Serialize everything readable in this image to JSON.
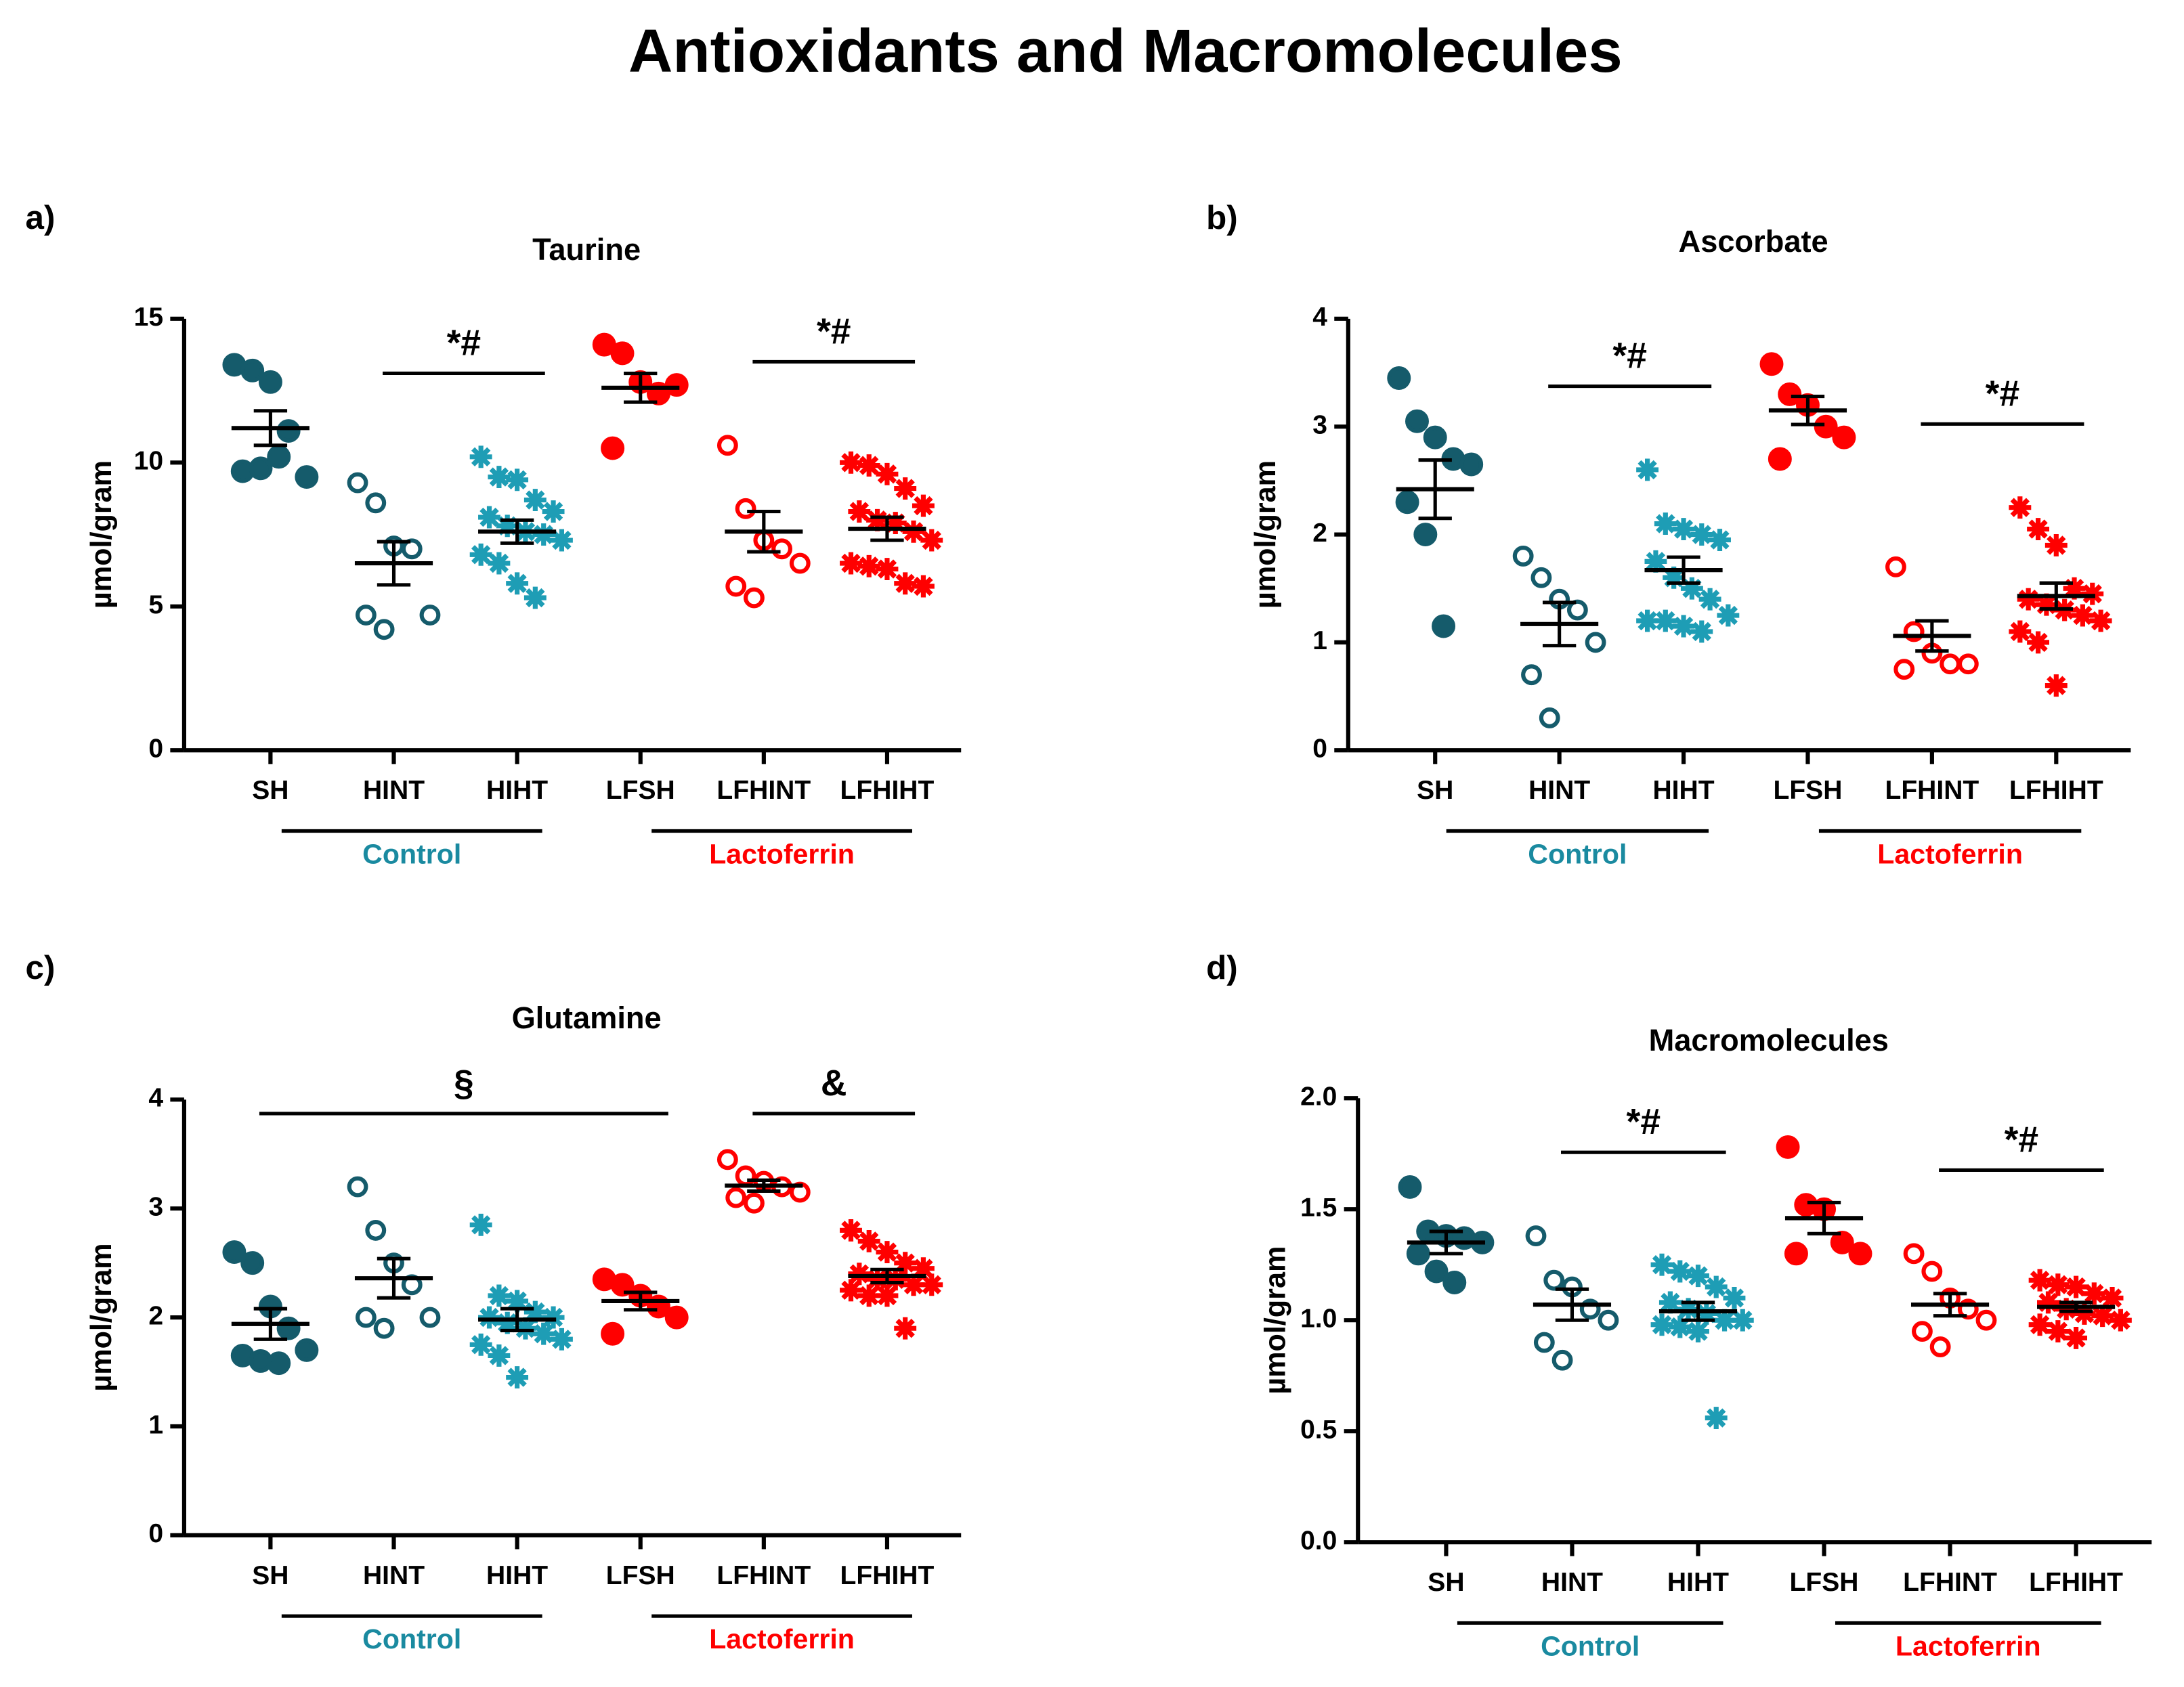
{
  "title": "Antioxidants and Macromolecules",
  "chart_data": [
    {
      "type": "dot",
      "panel": "a)",
      "title": "Taurine",
      "ylabel": "µmol/gram",
      "categories": [
        "SH",
        "HINT",
        "HIHT",
        "LFSH",
        "LFHINT",
        "LFHIHT"
      ],
      "colors": [
        "#155b6b",
        "#155b6b",
        "#1e9db5",
        "#ff0000",
        "#ff0000",
        "#ff0000"
      ],
      "markers": [
        "filled",
        "open",
        "asterisk",
        "filled",
        "open",
        "asterisk"
      ],
      "points": [
        [
          13.4,
          13.2,
          12.8,
          11.1,
          9.5,
          9.7,
          9.8,
          10.2
        ],
        [
          9.3,
          8.6,
          7.1,
          7.0,
          4.7,
          4.7,
          4.2
        ],
        [
          10.2,
          9.5,
          9.4,
          8.7,
          8.3,
          8.1,
          7.8,
          7.6,
          7.5,
          7.3,
          6.8,
          6.5,
          5.8,
          5.3
        ],
        [
          14.1,
          13.8,
          12.8,
          12.4,
          12.7,
          10.5
        ],
        [
          10.6,
          8.4,
          7.3,
          7.0,
          6.5,
          5.7,
          5.3
        ],
        [
          10.0,
          9.9,
          9.6,
          9.1,
          8.5,
          8.3,
          8.0,
          7.9,
          7.6,
          7.3,
          6.5,
          6.4,
          6.3,
          5.8,
          5.7
        ]
      ],
      "means": [
        11.2,
        6.5,
        7.6,
        12.6,
        7.6,
        7.7
      ],
      "sems": [
        0.6,
        0.75,
        0.4,
        0.5,
        0.7,
        0.4
      ],
      "ylim": [
        0,
        15
      ],
      "yticks": [
        0,
        5,
        10,
        15
      ],
      "groups": [
        {
          "label": "Control",
          "color": "#1a8aa0",
          "span": [
            0,
            2
          ]
        },
        {
          "label": "Lactoferrin",
          "color": "#ff0000",
          "span": [
            3,
            5
          ]
        }
      ],
      "significance": [
        {
          "text": "*#",
          "span": [
            1,
            2
          ]
        },
        {
          "text": "*#",
          "span": [
            4,
            5
          ]
        }
      ]
    },
    {
      "type": "dot",
      "panel": "b)",
      "title": "Ascorbate",
      "ylabel": "µmol/gram",
      "categories": [
        "SH",
        "HINT",
        "HIHT",
        "LFSH",
        "LFHINT",
        "LFHIHT"
      ],
      "colors": [
        "#155b6b",
        "#155b6b",
        "#1e9db5",
        "#ff0000",
        "#ff0000",
        "#ff0000"
      ],
      "markers": [
        "filled",
        "open",
        "asterisk",
        "filled",
        "open",
        "asterisk"
      ],
      "points": [
        [
          3.45,
          3.05,
          2.9,
          2.7,
          2.65,
          2.3,
          2.0,
          1.15
        ],
        [
          1.8,
          1.6,
          1.4,
          1.3,
          1.0,
          0.7,
          0.3
        ],
        [
          2.6,
          2.1,
          2.05,
          2.0,
          1.95,
          1.75,
          1.6,
          1.5,
          1.4,
          1.25,
          1.2,
          1.2,
          1.15,
          1.1
        ],
        [
          3.58,
          3.3,
          3.2,
          3.0,
          2.9,
          2.7
        ],
        [
          1.7,
          1.1,
          0.9,
          0.8,
          0.8,
          0.75
        ],
        [
          2.25,
          2.05,
          1.9,
          1.5,
          1.45,
          1.4,
          1.35,
          1.3,
          1.25,
          1.2,
          1.1,
          1.0,
          0.6
        ]
      ],
      "means": [
        2.42,
        1.17,
        1.67,
        3.15,
        1.06,
        1.43
      ],
      "sems": [
        0.27,
        0.2,
        0.12,
        0.13,
        0.14,
        0.12
      ],
      "ylim": [
        0,
        4
      ],
      "yticks": [
        0,
        1,
        2,
        3,
        4
      ],
      "groups": [
        {
          "label": "Control",
          "color": "#1a8aa0",
          "span": [
            0,
            2
          ]
        },
        {
          "label": "Lactoferrin",
          "color": "#ff0000",
          "span": [
            3,
            5
          ]
        }
      ],
      "significance": [
        {
          "text": "*#",
          "span": [
            1,
            2
          ]
        },
        {
          "text": "*#",
          "span": [
            4,
            5
          ]
        }
      ]
    },
    {
      "type": "dot",
      "panel": "c)",
      "title": "Glutamine",
      "ylabel": "µmol/gram",
      "categories": [
        "SH",
        "HINT",
        "HIHT",
        "LFSH",
        "LFHINT",
        "LFHIHT"
      ],
      "colors": [
        "#155b6b",
        "#155b6b",
        "#1e9db5",
        "#ff0000",
        "#ff0000",
        "#ff0000"
      ],
      "markers": [
        "filled",
        "open",
        "asterisk",
        "filled",
        "open",
        "asterisk"
      ],
      "points": [
        [
          2.6,
          2.5,
          2.1,
          1.9,
          1.7,
          1.65,
          1.6,
          1.58
        ],
        [
          3.2,
          2.8,
          2.5,
          2.3,
          2.0,
          2.0,
          1.9
        ],
        [
          2.85,
          2.2,
          2.15,
          2.05,
          2.0,
          2.0,
          1.95,
          1.9,
          1.85,
          1.8,
          1.75,
          1.65,
          1.45
        ],
        [
          2.35,
          2.3,
          2.2,
          2.1,
          2.0,
          1.85
        ],
        [
          3.45,
          3.3,
          3.25,
          3.2,
          3.15,
          3.1,
          3.05
        ],
        [
          2.8,
          2.7,
          2.6,
          2.5,
          2.45,
          2.4,
          2.35,
          2.35,
          2.3,
          2.3,
          2.25,
          2.2,
          2.2,
          1.9
        ]
      ],
      "means": [
        1.94,
        2.36,
        1.98,
        2.15,
        3.21,
        2.38
      ],
      "sems": [
        0.14,
        0.18,
        0.1,
        0.08,
        0.05,
        0.06
      ],
      "ylim": [
        0,
        4
      ],
      "yticks": [
        0,
        1,
        2,
        3,
        4
      ],
      "groups": [
        {
          "label": "Control",
          "color": "#1a8aa0",
          "span": [
            0,
            2
          ]
        },
        {
          "label": "Lactoferrin",
          "color": "#ff0000",
          "span": [
            3,
            5
          ]
        }
      ],
      "significance": [
        {
          "text": "§",
          "span": [
            0,
            3
          ]
        },
        {
          "text": "&",
          "span": [
            4,
            5
          ]
        }
      ]
    },
    {
      "type": "dot",
      "panel": "d)",
      "title": "Macromolecules",
      "ylabel": "µmol/gram",
      "categories": [
        "SH",
        "HINT",
        "HIHT",
        "LFSH",
        "LFHINT",
        "LFHIHT"
      ],
      "colors": [
        "#155b6b",
        "#155b6b",
        "#1e9db5",
        "#ff0000",
        "#ff0000",
        "#ff0000"
      ],
      "markers": [
        "filled",
        "open",
        "asterisk",
        "filled",
        "open",
        "asterisk"
      ],
      "points": [
        [
          1.6,
          1.4,
          1.38,
          1.37,
          1.35,
          1.3,
          1.22,
          1.17
        ],
        [
          1.38,
          1.18,
          1.15,
          1.05,
          1.0,
          0.9,
          0.82
        ],
        [
          1.25,
          1.22,
          1.2,
          1.15,
          1.1,
          1.08,
          1.05,
          1.03,
          1.0,
          1.0,
          0.98,
          0.97,
          0.95,
          0.56
        ],
        [
          1.78,
          1.52,
          1.5,
          1.35,
          1.3,
          1.3
        ],
        [
          1.3,
          1.22,
          1.1,
          1.05,
          1.0,
          0.95,
          0.88
        ],
        [
          1.18,
          1.16,
          1.15,
          1.12,
          1.1,
          1.08,
          1.05,
          1.03,
          1.02,
          1.0,
          0.98,
          0.95,
          0.92
        ]
      ],
      "means": [
        1.35,
        1.07,
        1.04,
        1.46,
        1.07,
        1.06
      ],
      "sems": [
        0.05,
        0.07,
        0.04,
        0.07,
        0.05,
        0.02
      ],
      "ylim": [
        0,
        2
      ],
      "yticks": [
        {
          "value": 0,
          "label": "0.0"
        },
        {
          "value": 0.5,
          "label": "0.5"
        },
        {
          "value": 1,
          "label": "1.0"
        },
        {
          "value": 1.5,
          "label": "1.5"
        },
        {
          "value": 2,
          "label": "2.0"
        }
      ],
      "groups": [
        {
          "label": "Control",
          "color": "#1a8aa0",
          "span": [
            0,
            2
          ]
        },
        {
          "label": "Lactoferrin",
          "color": "#ff0000",
          "span": [
            3,
            5
          ]
        }
      ],
      "significance": [
        {
          "text": "*#",
          "span": [
            1,
            2
          ]
        },
        {
          "text": "*#",
          "span": [
            4,
            5
          ]
        }
      ]
    }
  ]
}
